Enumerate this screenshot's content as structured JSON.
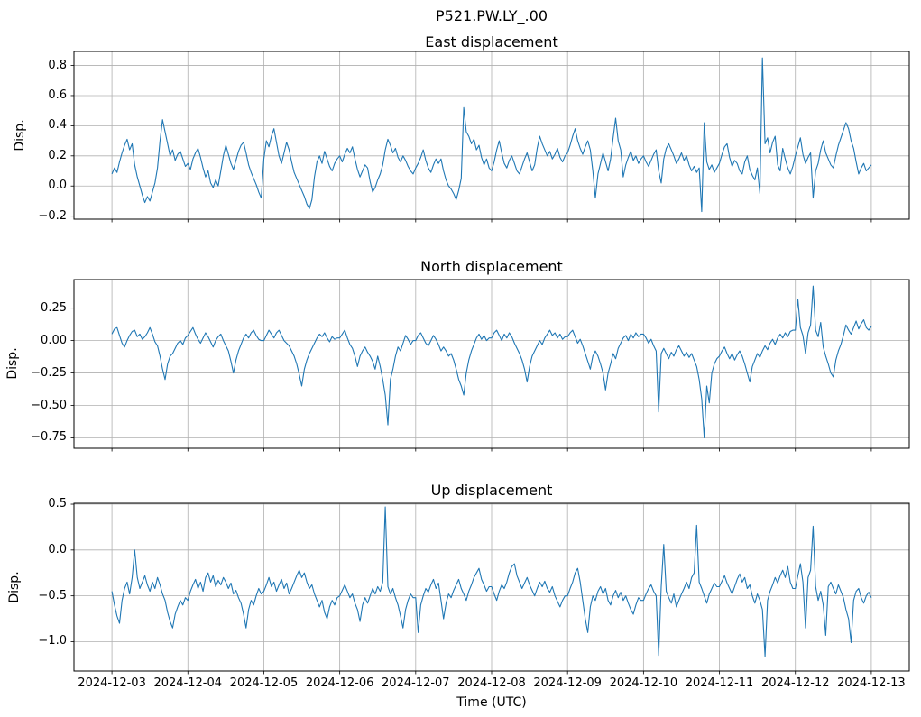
{
  "figure": {
    "suptitle": "P521.PW.LY_.00",
    "xlabel": "Time (UTC)",
    "x_tick_labels": [
      "2024-12-03",
      "2024-12-04",
      "2024-12-05",
      "2024-12-06",
      "2024-12-07",
      "2024-12-08",
      "2024-12-09",
      "2024-12-10",
      "2024-12-11",
      "2024-12-12",
      "2024-12-13"
    ],
    "line_color": "#1f77b4",
    "grid_color": "#b0b0b0",
    "axes_edge_color": "#000000",
    "text_color": "#000000",
    "background": "#ffffff"
  },
  "chart_data": [
    {
      "type": "line",
      "title": "East displacement",
      "ylabel": "Disp.",
      "xlabel": "",
      "xlim": [
        -0.5,
        10.5
      ],
      "ylim": [
        -0.22,
        0.893
      ],
      "yticks": [
        -0.2,
        0.0,
        0.2,
        0.4,
        0.6,
        0.8
      ],
      "ytick_labels": [
        "−0.2",
        "0.0",
        "0.2",
        "0.4",
        "0.6",
        "0.8"
      ],
      "x_days_range": [
        0,
        10
      ],
      "grid": true,
      "values": [
        0.08,
        0.12,
        0.09,
        0.16,
        0.22,
        0.27,
        0.31,
        0.24,
        0.28,
        0.14,
        0.06,
        0.0,
        -0.06,
        -0.11,
        -0.07,
        -0.1,
        -0.04,
        0.02,
        0.12,
        0.3,
        0.44,
        0.36,
        0.28,
        0.2,
        0.24,
        0.17,
        0.21,
        0.23,
        0.18,
        0.13,
        0.15,
        0.11,
        0.18,
        0.22,
        0.25,
        0.19,
        0.12,
        0.06,
        0.1,
        0.02,
        -0.01,
        0.04,
        0.0,
        0.1,
        0.2,
        0.27,
        0.21,
        0.15,
        0.11,
        0.17,
        0.23,
        0.27,
        0.29,
        0.22,
        0.14,
        0.09,
        0.05,
        0.01,
        -0.04,
        -0.08,
        0.18,
        0.3,
        0.26,
        0.33,
        0.38,
        0.29,
        0.2,
        0.15,
        0.22,
        0.29,
        0.24,
        0.16,
        0.09,
        0.05,
        0.01,
        -0.03,
        -0.07,
        -0.12,
        -0.15,
        -0.09,
        0.06,
        0.16,
        0.2,
        0.15,
        0.23,
        0.18,
        0.13,
        0.1,
        0.15,
        0.18,
        0.2,
        0.16,
        0.21,
        0.25,
        0.22,
        0.26,
        0.18,
        0.11,
        0.06,
        0.1,
        0.14,
        0.12,
        0.03,
        -0.04,
        -0.01,
        0.04,
        0.08,
        0.14,
        0.24,
        0.31,
        0.27,
        0.22,
        0.25,
        0.19,
        0.16,
        0.2,
        0.17,
        0.13,
        0.1,
        0.08,
        0.12,
        0.15,
        0.19,
        0.24,
        0.17,
        0.12,
        0.09,
        0.14,
        0.18,
        0.15,
        0.18,
        0.1,
        0.04,
        0.0,
        -0.02,
        -0.05,
        -0.09,
        -0.03,
        0.05,
        0.52,
        0.36,
        0.33,
        0.28,
        0.31,
        0.24,
        0.27,
        0.19,
        0.14,
        0.18,
        0.12,
        0.1,
        0.16,
        0.24,
        0.3,
        0.22,
        0.15,
        0.12,
        0.17,
        0.2,
        0.15,
        0.1,
        0.08,
        0.13,
        0.18,
        0.22,
        0.16,
        0.1,
        0.14,
        0.25,
        0.33,
        0.28,
        0.24,
        0.2,
        0.23,
        0.18,
        0.21,
        0.25,
        0.19,
        0.16,
        0.2,
        0.22,
        0.27,
        0.33,
        0.38,
        0.3,
        0.25,
        0.21,
        0.26,
        0.3,
        0.24,
        0.1,
        -0.08,
        0.08,
        0.15,
        0.22,
        0.16,
        0.1,
        0.18,
        0.32,
        0.45,
        0.3,
        0.24,
        0.06,
        0.14,
        0.19,
        0.23,
        0.17,
        0.2,
        0.15,
        0.18,
        0.2,
        0.16,
        0.13,
        0.17,
        0.21,
        0.24,
        0.1,
        0.02,
        0.18,
        0.25,
        0.28,
        0.24,
        0.2,
        0.15,
        0.18,
        0.22,
        0.17,
        0.2,
        0.14,
        0.1,
        0.13,
        0.09,
        0.12,
        -0.17,
        0.42,
        0.16,
        0.11,
        0.14,
        0.09,
        0.12,
        0.15,
        0.21,
        0.26,
        0.28,
        0.19,
        0.13,
        0.17,
        0.15,
        0.1,
        0.08,
        0.16,
        0.2,
        0.11,
        0.07,
        0.04,
        0.12,
        -0.05,
        0.85,
        0.28,
        0.32,
        0.22,
        0.29,
        0.33,
        0.14,
        0.1,
        0.25,
        0.18,
        0.12,
        0.08,
        0.13,
        0.2,
        0.26,
        0.32,
        0.21,
        0.15,
        0.19,
        0.22,
        -0.08,
        0.1,
        0.15,
        0.24,
        0.3,
        0.22,
        0.18,
        0.14,
        0.12,
        0.2,
        0.27,
        0.32,
        0.37,
        0.42,
        0.38,
        0.3,
        0.25,
        0.16,
        0.08,
        0.12,
        0.15,
        0.1,
        0.12,
        0.14
      ]
    },
    {
      "type": "line",
      "title": "North displacement",
      "ylabel": "Disp.",
      "xlabel": "",
      "xlim": [
        -0.5,
        10.5
      ],
      "ylim": [
        -0.83,
        0.47
      ],
      "yticks": [
        -0.75,
        -0.5,
        -0.25,
        0.0,
        0.25
      ],
      "ytick_labels": [
        "−0.75",
        "−0.50",
        "−0.25",
        "0.00",
        "0.25"
      ],
      "x_days_range": [
        0,
        10
      ],
      "grid": true,
      "values": [
        0.05,
        0.09,
        0.1,
        0.04,
        -0.02,
        -0.05,
        0.0,
        0.04,
        0.07,
        0.08,
        0.03,
        0.05,
        0.01,
        0.03,
        0.06,
        0.1,
        0.05,
        -0.01,
        -0.04,
        -0.12,
        -0.22,
        -0.3,
        -0.18,
        -0.12,
        -0.1,
        -0.06,
        -0.02,
        0.0,
        -0.03,
        0.02,
        0.04,
        0.07,
        0.1,
        0.05,
        0.01,
        -0.02,
        0.02,
        0.06,
        0.03,
        -0.01,
        -0.05,
        0.0,
        0.03,
        0.05,
        0.0,
        -0.04,
        -0.08,
        -0.16,
        -0.25,
        -0.15,
        -0.08,
        -0.03,
        0.02,
        0.05,
        0.02,
        0.06,
        0.08,
        0.04,
        0.01,
        0.0,
        0.0,
        0.04,
        0.08,
        0.05,
        0.02,
        0.06,
        0.08,
        0.04,
        0.0,
        -0.02,
        -0.04,
        -0.08,
        -0.12,
        -0.18,
        -0.26,
        -0.35,
        -0.22,
        -0.15,
        -0.1,
        -0.06,
        -0.02,
        0.02,
        0.05,
        0.03,
        0.06,
        0.02,
        -0.01,
        0.03,
        0.01,
        0.02,
        0.02,
        0.05,
        0.08,
        0.02,
        -0.03,
        -0.06,
        -0.12,
        -0.2,
        -0.12,
        -0.08,
        -0.05,
        -0.09,
        -0.12,
        -0.16,
        -0.22,
        -0.12,
        -0.2,
        -0.3,
        -0.42,
        -0.65,
        -0.3,
        -0.22,
        -0.12,
        -0.05,
        -0.08,
        -0.02,
        0.04,
        0.01,
        -0.03,
        0.0,
        0.0,
        0.04,
        0.06,
        0.02,
        -0.02,
        -0.04,
        0.0,
        0.04,
        0.01,
        -0.03,
        -0.08,
        -0.05,
        -0.08,
        -0.12,
        -0.1,
        -0.15,
        -0.22,
        -0.3,
        -0.35,
        -0.42,
        -0.25,
        -0.15,
        -0.08,
        -0.03,
        0.02,
        0.05,
        0.01,
        0.04,
        0.0,
        0.02,
        0.02,
        0.06,
        0.08,
        0.04,
        0.0,
        0.05,
        0.02,
        0.06,
        0.03,
        -0.02,
        -0.06,
        -0.1,
        -0.15,
        -0.22,
        -0.32,
        -0.2,
        -0.12,
        -0.08,
        -0.04,
        0.0,
        -0.03,
        0.02,
        0.05,
        0.08,
        0.04,
        0.06,
        0.02,
        0.05,
        0.01,
        0.03,
        0.03,
        0.06,
        0.08,
        0.03,
        -0.02,
        0.01,
        -0.04,
        -0.1,
        -0.16,
        -0.22,
        -0.12,
        -0.08,
        -0.12,
        -0.18,
        -0.25,
        -0.38,
        -0.25,
        -0.18,
        -0.1,
        -0.14,
        -0.06,
        -0.02,
        0.02,
        0.04,
        0.0,
        0.05,
        0.02,
        0.06,
        0.03,
        0.05,
        0.05,
        0.02,
        -0.02,
        0.01,
        -0.04,
        -0.08,
        -0.55,
        -0.1,
        -0.06,
        -0.1,
        -0.14,
        -0.09,
        -0.12,
        -0.07,
        -0.04,
        -0.08,
        -0.12,
        -0.09,
        -0.13,
        -0.1,
        -0.15,
        -0.2,
        -0.3,
        -0.45,
        -0.75,
        -0.35,
        -0.48,
        -0.25,
        -0.18,
        -0.14,
        -0.12,
        -0.08,
        -0.05,
        -0.1,
        -0.14,
        -0.1,
        -0.15,
        -0.11,
        -0.08,
        -0.12,
        -0.18,
        -0.25,
        -0.32,
        -0.2,
        -0.15,
        -0.1,
        -0.13,
        -0.08,
        -0.04,
        -0.07,
        -0.02,
        0.01,
        -0.03,
        0.02,
        0.05,
        0.02,
        0.06,
        0.03,
        0.07,
        0.08,
        0.08,
        0.32,
        0.1,
        0.04,
        -0.1,
        0.06,
        0.12,
        0.42,
        0.08,
        0.03,
        0.14,
        -0.05,
        -0.12,
        -0.18,
        -0.25,
        -0.28,
        -0.15,
        -0.08,
        -0.03,
        0.04,
        0.12,
        0.08,
        0.05,
        0.1,
        0.15,
        0.09,
        0.13,
        0.16,
        0.1,
        0.08,
        0.11
      ]
    },
    {
      "type": "line",
      "title": "Up displacement",
      "ylabel": "Disp.",
      "xlabel": "Time (UTC)",
      "xlim": [
        -0.5,
        10.5
      ],
      "ylim": [
        -1.32,
        0.51
      ],
      "yticks": [
        -1.0,
        -0.5,
        0.0,
        0.5
      ],
      "ytick_labels": [
        "−1.0",
        "−0.5",
        "0.0",
        "0.5"
      ],
      "x_days_range": [
        0,
        10
      ],
      "grid": true,
      "values": [
        -0.45,
        -0.6,
        -0.72,
        -0.8,
        -0.55,
        -0.42,
        -0.35,
        -0.48,
        -0.3,
        0.0,
        -0.3,
        -0.42,
        -0.35,
        -0.28,
        -0.38,
        -0.45,
        -0.35,
        -0.42,
        -0.3,
        -0.38,
        -0.48,
        -0.55,
        -0.68,
        -0.78,
        -0.85,
        -0.7,
        -0.62,
        -0.55,
        -0.6,
        -0.52,
        -0.55,
        -0.45,
        -0.38,
        -0.32,
        -0.42,
        -0.35,
        -0.45,
        -0.3,
        -0.25,
        -0.35,
        -0.28,
        -0.4,
        -0.33,
        -0.38,
        -0.3,
        -0.35,
        -0.42,
        -0.36,
        -0.48,
        -0.44,
        -0.52,
        -0.58,
        -0.7,
        -0.85,
        -0.65,
        -0.55,
        -0.6,
        -0.5,
        -0.42,
        -0.48,
        -0.45,
        -0.38,
        -0.3,
        -0.4,
        -0.35,
        -0.45,
        -0.38,
        -0.32,
        -0.42,
        -0.36,
        -0.48,
        -0.42,
        -0.35,
        -0.28,
        -0.22,
        -0.3,
        -0.25,
        -0.35,
        -0.42,
        -0.38,
        -0.48,
        -0.55,
        -0.62,
        -0.55,
        -0.68,
        -0.75,
        -0.62,
        -0.55,
        -0.6,
        -0.52,
        -0.5,
        -0.44,
        -0.38,
        -0.45,
        -0.52,
        -0.48,
        -0.58,
        -0.65,
        -0.78,
        -0.6,
        -0.52,
        -0.58,
        -0.5,
        -0.42,
        -0.48,
        -0.4,
        -0.45,
        -0.35,
        0.47,
        -0.4,
        -0.48,
        -0.42,
        -0.52,
        -0.6,
        -0.72,
        -0.85,
        -0.65,
        -0.55,
        -0.48,
        -0.52,
        -0.52,
        -0.9,
        -0.6,
        -0.5,
        -0.42,
        -0.46,
        -0.38,
        -0.32,
        -0.42,
        -0.36,
        -0.55,
        -0.75,
        -0.58,
        -0.48,
        -0.52,
        -0.44,
        -0.38,
        -0.32,
        -0.42,
        -0.48,
        -0.55,
        -0.45,
        -0.38,
        -0.3,
        -0.25,
        -0.2,
        -0.32,
        -0.38,
        -0.45,
        -0.4,
        -0.4,
        -0.48,
        -0.55,
        -0.45,
        -0.38,
        -0.42,
        -0.35,
        -0.25,
        -0.18,
        -0.15,
        -0.28,
        -0.35,
        -0.42,
        -0.36,
        -0.3,
        -0.38,
        -0.44,
        -0.5,
        -0.42,
        -0.35,
        -0.4,
        -0.34,
        -0.42,
        -0.46,
        -0.4,
        -0.5,
        -0.56,
        -0.62,
        -0.55,
        -0.5,
        -0.5,
        -0.42,
        -0.35,
        -0.25,
        -0.2,
        -0.35,
        -0.55,
        -0.75,
        -0.9,
        -0.62,
        -0.5,
        -0.55,
        -0.45,
        -0.4,
        -0.48,
        -0.42,
        -0.55,
        -0.6,
        -0.5,
        -0.44,
        -0.52,
        -0.46,
        -0.55,
        -0.5,
        -0.58,
        -0.65,
        -0.7,
        -0.6,
        -0.52,
        -0.55,
        -0.55,
        -0.48,
        -0.42,
        -0.38,
        -0.45,
        -0.5,
        -1.15,
        -0.4,
        0.06,
        -0.45,
        -0.52,
        -0.58,
        -0.48,
        -0.62,
        -0.55,
        -0.48,
        -0.42,
        -0.35,
        -0.42,
        -0.3,
        -0.25,
        0.27,
        -0.35,
        -0.42,
        -0.5,
        -0.58,
        -0.48,
        -0.42,
        -0.36,
        -0.4,
        -0.4,
        -0.34,
        -0.28,
        -0.36,
        -0.42,
        -0.48,
        -0.4,
        -0.32,
        -0.26,
        -0.35,
        -0.3,
        -0.42,
        -0.38,
        -0.5,
        -0.58,
        -0.48,
        -0.55,
        -0.65,
        -1.16,
        -0.55,
        -0.45,
        -0.38,
        -0.3,
        -0.36,
        -0.28,
        -0.22,
        -0.3,
        -0.18,
        -0.35,
        -0.42,
        -0.42,
        -0.28,
        -0.15,
        -0.35,
        -0.85,
        -0.3,
        -0.22,
        0.26,
        -0.4,
        -0.55,
        -0.45,
        -0.6,
        -0.93,
        -0.4,
        -0.35,
        -0.42,
        -0.48,
        -0.38,
        -0.45,
        -0.52,
        -0.65,
        -0.75,
        -1.01,
        -0.55,
        -0.45,
        -0.42,
        -0.52,
        -0.58,
        -0.5,
        -0.46,
        -0.52
      ]
    }
  ]
}
